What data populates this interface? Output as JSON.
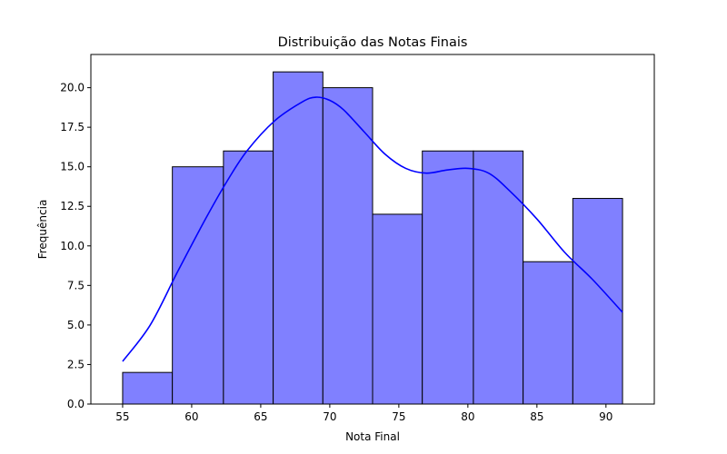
{
  "chart_data": {
    "type": "bar",
    "title": "Distribuição das Notas Finais",
    "xlabel": "Nota Final",
    "ylabel": "Frequência",
    "bin_edges": [
      55.0,
      58.6,
      62.3,
      65.9,
      69.5,
      73.1,
      76.7,
      80.4,
      84.0,
      87.6,
      91.2
    ],
    "values": [
      2,
      15,
      16,
      21,
      20,
      12,
      16,
      16,
      9,
      13
    ],
    "xlim": [
      52.7,
      93.5
    ],
    "ylim": [
      0,
      22.1
    ],
    "xticks": [
      55,
      60,
      65,
      70,
      75,
      80,
      85,
      90
    ],
    "yticks": [
      0.0,
      2.5,
      5.0,
      7.5,
      10.0,
      12.5,
      15.0,
      17.5,
      20.0
    ],
    "ytick_labels": [
      "0.0",
      "2.5",
      "5.0",
      "7.5",
      "10.0",
      "12.5",
      "15.0",
      "17.5",
      "20.0"
    ],
    "bar_color": "#8080ff",
    "bar_edge_color": "#000000",
    "kde": {
      "name": "kde",
      "color": "#0000ff",
      "x": [
        55.0,
        57.0,
        59.0,
        61.0,
        62.5,
        64.0,
        66.0,
        68.0,
        69.0,
        70.0,
        71.0,
        72.5,
        74.0,
        75.5,
        77.0,
        78.5,
        80.0,
        81.5,
        83.0,
        85.0,
        87.0,
        89.0,
        91.2
      ],
      "y": [
        2.7,
        5.0,
        8.4,
        11.7,
        14.0,
        16.0,
        17.9,
        19.1,
        19.4,
        19.2,
        18.6,
        17.2,
        15.8,
        14.9,
        14.6,
        14.8,
        14.9,
        14.6,
        13.5,
        11.7,
        9.6,
        7.9,
        5.8
      ]
    },
    "grid": false,
    "legend": "none"
  }
}
